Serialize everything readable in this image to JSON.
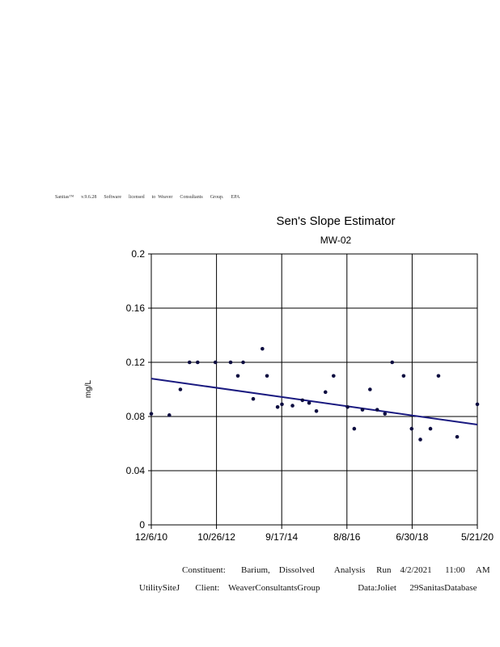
{
  "banner": "Sanitas™      v.9.6.28      Software      licensed      to  Weaver      Consultants      Group.      EPA",
  "footer": {
    "line1": "Constituent:       Barium,    Dissolved         Analysis     Run    4/2/2021      11:00     AM",
    "line2": "UtilitySiteJ       Client:    WeaverConsultantsGroup                 Data:Joliet      29SanitasDatabase"
  },
  "colors": {
    "trend": "#1a1a80",
    "points": "#0d0d40",
    "grid": "#000000"
  },
  "chart_data": {
    "type": "scatter",
    "title": "Sen's Slope Estimator",
    "subtitle": "MW-02",
    "xlabel": "",
    "ylabel": "mg/L",
    "x_tick_labels": [
      "12/6/10",
      "10/26/12",
      "9/17/14",
      "8/8/16",
      "6/30/18",
      "5/21/20"
    ],
    "xlim": [
      "2010-12-06",
      "2020-05-21"
    ],
    "ylim": [
      0,
      0.2
    ],
    "y_ticks": [
      0,
      0.04,
      0.08,
      0.12,
      0.16,
      0.2
    ],
    "y_tick_labels": [
      "0",
      "0.04",
      "0.08",
      "0.12",
      "0.16",
      "0.2"
    ],
    "grid": true,
    "series": [
      {
        "x": [
          "2010-12-06",
          "2011-06-15",
          "2011-10-10",
          "2012-01-15",
          "2012-04-10",
          "2012-10-15",
          "2013-03-25",
          "2013-06-10",
          "2013-08-05",
          "2013-11-20",
          "2014-02-25",
          "2014-04-15",
          "2014-08-05",
          "2014-09-20",
          "2015-01-10",
          "2015-04-25",
          "2015-07-05",
          "2015-09-20",
          "2015-12-25",
          "2016-03-20",
          "2016-08-15",
          "2016-10-25",
          "2017-01-20",
          "2017-04-10",
          "2017-06-25",
          "2017-09-15",
          "2017-12-01",
          "2018-04-01",
          "2018-06-25",
          "2018-09-25",
          "2019-01-10",
          "2019-04-05",
          "2019-10-20",
          "2020-05-21"
        ],
        "y": [
          0.082,
          0.081,
          0.1,
          0.12,
          0.12,
          0.12,
          0.12,
          0.11,
          0.12,
          0.093,
          0.13,
          0.11,
          0.087,
          0.089,
          0.088,
          0.092,
          0.09,
          0.084,
          0.098,
          0.11,
          0.087,
          0.071,
          0.085,
          0.1,
          0.085,
          0.082,
          0.12,
          0.11,
          0.071,
          0.063,
          0.071,
          0.11,
          0.065,
          0.089
        ]
      }
    ],
    "trend_line": {
      "x": [
        "2010-12-06",
        "2020-05-21"
      ],
      "y": [
        0.108,
        0.074
      ]
    }
  }
}
